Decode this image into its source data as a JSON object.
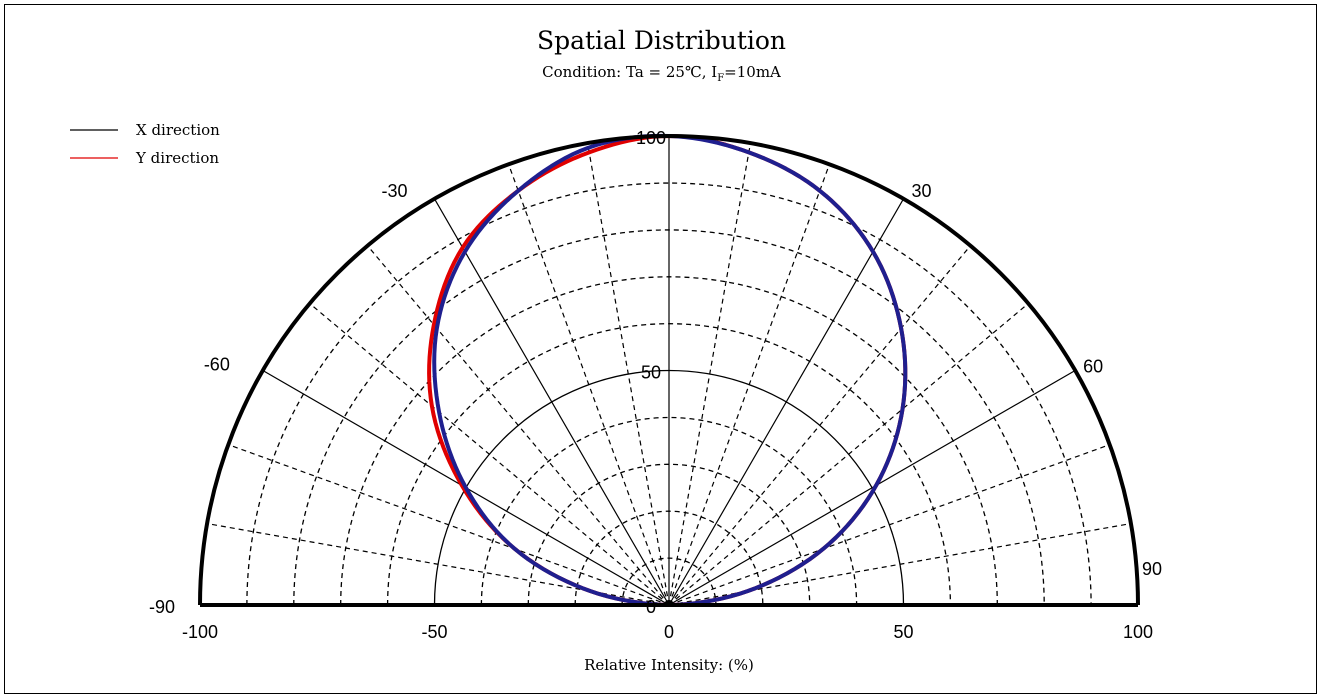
{
  "chart_data": {
    "type": "polar",
    "title": "Spatial Distribution",
    "subtitle": {
      "prefix": "Condition: Ta = 25℃, I",
      "subscript": "F",
      "suffix": "=10mA"
    },
    "xlabel": "Relative Intensity: (%)",
    "x_ticks": [
      "-100",
      "-50",
      "0",
      "50",
      "100"
    ],
    "x_tick_values": [
      -100,
      -50,
      0,
      50,
      100
    ],
    "radial_labels": [
      "100",
      "50",
      "0"
    ],
    "radial_label_values": [
      100,
      50,
      0
    ],
    "angle_labels": [
      "-90",
      "-60",
      "-30",
      "30",
      "60",
      "90"
    ],
    "angle_label_values": [
      -90,
      -60,
      -30,
      30,
      60,
      90
    ],
    "rlim": [
      0,
      100
    ],
    "angle_range": [
      -90,
      90
    ],
    "major_grid_angle_step": 30,
    "minor_grid_angle_step": 10,
    "major_grid_radius_step": 50,
    "minor_grid_radius_step": 10,
    "legend_position": "top-left",
    "series": [
      {
        "name": "X direction",
        "color": "#000000",
        "plot_color": "#1f1f8f",
        "angles": [
          -90,
          -80,
          -70,
          -60,
          -50,
          -40,
          -30,
          -20,
          -10,
          0,
          10,
          20,
          30,
          40,
          50,
          60,
          70,
          80,
          90
        ],
        "values": [
          0,
          17,
          35,
          50,
          64,
          77,
          87,
          94,
          99,
          100,
          98,
          94,
          87,
          77,
          65,
          51,
          35,
          17,
          0
        ]
      },
      {
        "name": "Y direction",
        "color": "#e00000",
        "plot_color": "#e00000",
        "angles": [
          -90,
          -80,
          -70,
          -60,
          -50,
          -40,
          -30,
          -20,
          -10,
          0,
          10,
          20,
          30,
          40,
          50,
          60,
          70,
          80,
          90
        ],
        "values": [
          0,
          17,
          35,
          51,
          66,
          78,
          88,
          94,
          98,
          100,
          98,
          94,
          87,
          77,
          65,
          51,
          35,
          17,
          0
        ]
      }
    ]
  }
}
